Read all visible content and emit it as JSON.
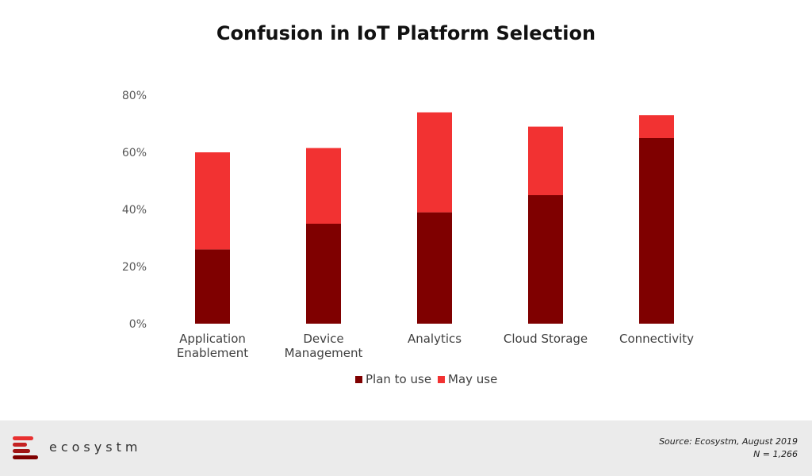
{
  "chart_data": {
    "type": "bar",
    "stacked": true,
    "title": "Confusion in IoT Platform Selection",
    "categories": [
      [
        "Application",
        "Enablement"
      ],
      [
        "Device",
        "Management"
      ],
      [
        "Analytics"
      ],
      [
        "Cloud Storage"
      ],
      [
        "Connectivity"
      ]
    ],
    "series": [
      {
        "name": "Plan to use",
        "color": "#7f0000",
        "values": [
          26,
          35,
          39,
          45,
          65
        ]
      },
      {
        "name": "May use",
        "color": "#f23232",
        "values": [
          34,
          26.5,
          35,
          24,
          8
        ]
      }
    ],
    "ylim": [
      0,
      80
    ],
    "yticks": [
      0,
      20,
      40,
      60,
      80
    ],
    "ytick_labels": [
      "0%",
      "20%",
      "40%",
      "60%",
      "80%"
    ],
    "grid": false,
    "legend_position": "bottom"
  },
  "footer": {
    "brand": "ecosystm",
    "source": "Source: Ecosystm, August 2019",
    "sample": "N = 1,266",
    "logo_colors": [
      "#e83030",
      "#c52222",
      "#a01515",
      "#7f0000"
    ]
  }
}
